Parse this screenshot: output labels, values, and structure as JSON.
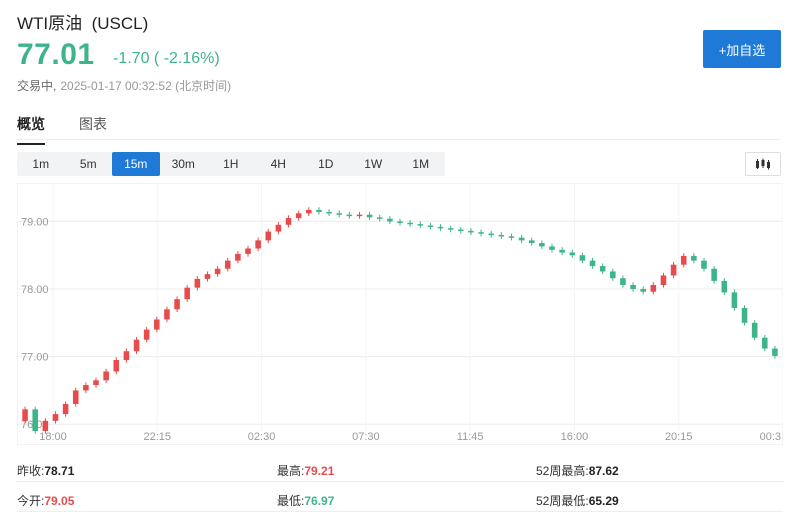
{
  "header": {
    "name": "WTI原油",
    "code": "(USCL)",
    "price": "77.01",
    "change": "-1.70",
    "change_pct": "( -2.16%)",
    "status": "交易中,",
    "timestamp": "2025-01-17 00:32:52 (北京时间)",
    "price_color": "#3eb489"
  },
  "actions": {
    "add_watchlist": "+加自选"
  },
  "tabs": [
    {
      "label": "概览",
      "active": true
    },
    {
      "label": "图表",
      "active": false
    }
  ],
  "periods": [
    {
      "label": "1m",
      "active": false
    },
    {
      "label": "5m",
      "active": false
    },
    {
      "label": "15m",
      "active": true
    },
    {
      "label": "30m",
      "active": false
    },
    {
      "label": "1H",
      "active": false
    },
    {
      "label": "4H",
      "active": false
    },
    {
      "label": "1D",
      "active": false
    },
    {
      "label": "1W",
      "active": false
    },
    {
      "label": "1M",
      "active": false
    }
  ],
  "chart_type_icon": "candlestick-icon",
  "colors": {
    "up": "#e74c4c",
    "down": "#3eb489",
    "accent": "#1e7ad6"
  },
  "chart_data": {
    "type": "candlestick",
    "y_ticks": [
      "79.00",
      "78.00",
      "77.00",
      "76.00"
    ],
    "y_tick_values": [
      79,
      78,
      77,
      76
    ],
    "x_ticks": [
      "18:00",
      "22:15",
      "02:30",
      "07:30",
      "11:45",
      "16:00",
      "20:15",
      "00:3"
    ],
    "ylim": [
      75.9,
      79.45
    ],
    "grid": true,
    "closes": [
      76.22,
      75.9,
      76.05,
      76.15,
      76.3,
      76.5,
      76.58,
      76.65,
      76.78,
      76.95,
      77.08,
      77.25,
      77.4,
      77.55,
      77.7,
      77.85,
      78.02,
      78.15,
      78.22,
      78.3,
      78.42,
      78.52,
      78.6,
      78.72,
      78.85,
      78.95,
      79.05,
      79.12,
      79.17,
      79.14,
      79.12,
      79.1,
      79.08,
      79.1,
      79.06,
      79.04,
      79.0,
      78.98,
      78.96,
      78.94,
      78.92,
      78.9,
      78.88,
      78.86,
      78.84,
      78.82,
      78.8,
      78.78,
      78.76,
      78.72,
      78.68,
      78.63,
      78.58,
      78.54,
      78.5,
      78.42,
      78.34,
      78.26,
      78.16,
      78.06,
      78.0,
      77.96,
      78.06,
      78.2,
      78.36,
      78.49,
      78.42,
      78.3,
      78.12,
      77.95,
      77.72,
      77.5,
      77.28,
      77.12,
      77.01
    ],
    "opens": [
      76.05,
      76.22,
      75.9,
      76.05,
      76.15,
      76.3,
      76.5,
      76.58,
      76.65,
      76.78,
      76.95,
      77.08,
      77.25,
      77.4,
      77.55,
      77.7,
      77.85,
      78.02,
      78.15,
      78.22,
      78.3,
      78.42,
      78.52,
      78.6,
      78.72,
      78.85,
      78.95,
      79.05,
      79.12,
      79.17,
      79.14,
      79.12,
      79.1,
      79.08,
      79.1,
      79.06,
      79.04,
      79.0,
      78.98,
      78.96,
      78.94,
      78.92,
      78.9,
      78.88,
      78.86,
      78.84,
      78.82,
      78.8,
      78.78,
      78.76,
      78.72,
      78.68,
      78.63,
      78.58,
      78.54,
      78.5,
      78.42,
      78.34,
      78.26,
      78.16,
      78.06,
      78.0,
      77.96,
      78.06,
      78.2,
      78.36,
      78.49,
      78.42,
      78.3,
      78.12,
      77.95,
      77.72,
      77.5,
      77.28,
      77.12
    ]
  },
  "stats": {
    "prev_close_label": "昨收:",
    "prev_close": "78.71",
    "high_label": "最高:",
    "high": "79.21",
    "high52_label": "52周最高:",
    "high52": "87.62",
    "open_label": "今开:",
    "open": "79.05",
    "low_label": "最低:",
    "low": "76.97",
    "low52_label": "52周最低:",
    "low52": "65.29"
  }
}
